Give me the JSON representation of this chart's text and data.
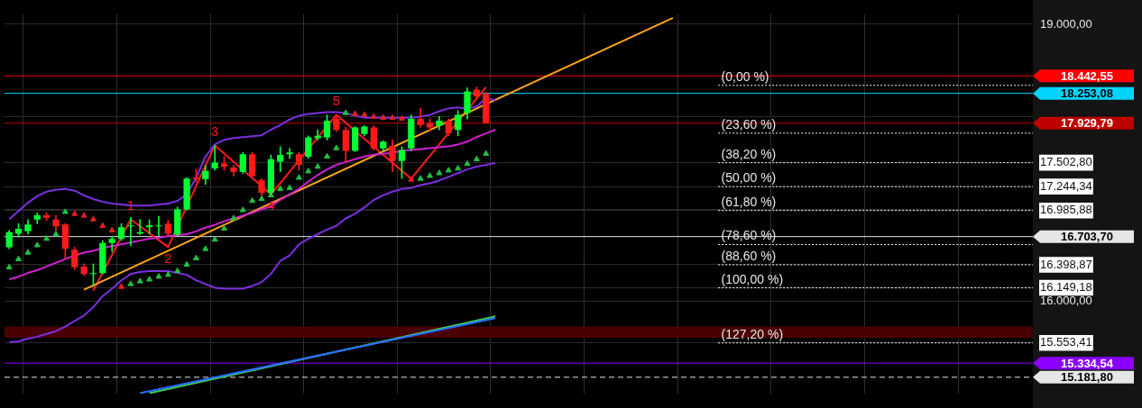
{
  "chart_data": {
    "type": "candlestick",
    "categories": [
      null,
      null,
      null,
      null,
      null,
      null,
      null,
      null,
      null,
      null,
      null,
      null,
      null,
      null,
      null,
      null,
      null,
      null,
      null,
      null,
      null,
      null,
      null,
      null,
      null,
      null,
      null,
      null,
      null,
      null,
      null,
      null,
      null,
      null,
      null,
      null,
      null,
      null,
      null,
      null,
      null,
      null,
      null,
      null,
      null,
      null,
      null,
      null,
      null,
      null,
      null,
      null,
      null,
      null,
      null,
      null,
      null,
      null,
      null,
      null,
      null,
      null,
      null,
      null,
      null,
      null,
      null,
      null,
      null,
      null,
      null,
      null,
      null,
      null,
      null,
      null,
      null,
      null,
      null,
      null,
      null,
      null,
      null,
      null,
      null,
      null,
      null,
      null,
      null,
      null,
      null,
      null,
      null,
      null,
      null,
      null,
      null,
      null,
      null,
      null,
      null,
      null,
      null,
      null,
      null,
      null,
      null,
      null,
      null,
      null
    ],
    "ohlc": [
      [
        16589,
        16770,
        16571,
        16752
      ],
      [
        16734,
        16843,
        16698,
        16788
      ],
      [
        16761,
        16888,
        16734,
        16834
      ],
      [
        16888,
        16960,
        16843,
        16933
      ],
      [
        16933,
        16960,
        16879,
        16906
      ],
      [
        16888,
        16933,
        16770,
        16815
      ],
      [
        16834,
        16843,
        16462,
        16571
      ],
      [
        16562,
        16589,
        16344,
        16371
      ],
      [
        16380,
        16407,
        16281,
        16299
      ],
      [
        16299,
        16407,
        16163,
        16308
      ],
      [
        16308,
        16661,
        16299,
        16634
      ],
      [
        16634,
        16707,
        16543,
        16679
      ],
      [
        16679,
        16843,
        16661,
        16806
      ],
      [
        16815,
        16915,
        16607,
        16824
      ],
      [
        16734,
        16888,
        16725,
        16752
      ],
      [
        16806,
        16888,
        16734,
        16824
      ],
      [
        16815,
        16924,
        16716,
        16824
      ],
      [
        16843,
        16879,
        16716,
        16734
      ],
      [
        16725,
        17024,
        16716,
        16997
      ],
      [
        16997,
        17341,
        16988,
        17332
      ],
      [
        17341,
        17432,
        17296,
        17323
      ],
      [
        17323,
        17477,
        17269,
        17414
      ],
      [
        17441,
        17686,
        17423,
        17504
      ],
      [
        17495,
        17568,
        17423,
        17459
      ],
      [
        17450,
        17477,
        17359,
        17405
      ],
      [
        17405,
        17613,
        17386,
        17595
      ],
      [
        17595,
        17613,
        17341,
        17359
      ],
      [
        17314,
        17332,
        17142,
        17178
      ],
      [
        17178,
        17586,
        17160,
        17541
      ],
      [
        17513,
        17677,
        17405,
        17586
      ],
      [
        17595,
        17658,
        17550,
        17613
      ],
      [
        17595,
        17613,
        17423,
        17477
      ],
      [
        17568,
        17794,
        17550,
        17776
      ],
      [
        17767,
        17858,
        17749,
        17794
      ],
      [
        17776,
        18021,
        17749,
        17958
      ],
      [
        17976,
        18021,
        17840,
        17858
      ],
      [
        17858,
        17885,
        17504,
        17631
      ],
      [
        17631,
        17894,
        17622,
        17885
      ],
      [
        17813,
        17903,
        17794,
        17894
      ],
      [
        17885,
        17903,
        17640,
        17658
      ],
      [
        17658,
        17740,
        17631,
        17731
      ],
      [
        17686,
        17749,
        17405,
        17522
      ],
      [
        17522,
        17677,
        17332,
        17640
      ],
      [
        17658,
        18021,
        17631,
        17976
      ],
      [
        17976,
        18094,
        17885,
        17912
      ],
      [
        17930,
        17976,
        17840,
        17885
      ],
      [
        17903,
        18003,
        17858,
        17958
      ],
      [
        17958,
        17976,
        17794,
        17822
      ],
      [
        17858,
        18066,
        17794,
        18021
      ],
      [
        18039,
        18311,
        17976,
        18275
      ],
      [
        18293,
        18320,
        18202,
        18221
      ],
      [
        18248,
        18266,
        17930,
        17930
      ],
      null,
      null,
      null,
      null,
      null,
      null,
      null,
      null,
      null,
      null,
      null,
      null,
      null,
      null,
      null,
      null,
      null,
      null,
      null,
      null,
      null,
      null,
      null,
      null,
      null,
      null,
      null,
      null,
      null,
      null,
      null,
      null,
      null,
      null,
      null,
      null,
      null,
      null,
      null,
      null,
      null,
      null,
      null,
      null,
      null,
      null,
      null,
      null,
      null,
      null,
      null,
      null,
      null,
      null,
      null,
      null,
      null,
      null
    ],
    "colors": [
      "#00ff33",
      "#00ff33",
      "#00ff33",
      "#00ff33",
      "#ff1a1a",
      "#ff1a1a",
      "#ff1a1a",
      "#ff1a1a",
      "#ff1a1a",
      "#00ff33",
      "#00ff33",
      "#00ff33",
      "#00ff33",
      "#00ff33",
      "#00ff33",
      "#00ff33",
      "#00ff33",
      "#ff1a1a",
      "#00ff33",
      "#00ff33",
      "#ff1a1a",
      "#00ff33",
      "#00ff33",
      "#ff1a1a",
      "#ff1a1a",
      "#00ff33",
      "#ff1a1a",
      "#ff1a1a",
      "#00ff33",
      "#00ff33",
      "#00ff33",
      "#ff1a1a",
      "#00ff33",
      "#00ff33",
      "#00ff33",
      "#ff1a1a",
      "#ff1a1a",
      "#00ff33",
      "#00ff33",
      "#ff1a1a",
      "#00ff33",
      "#ff1a1a",
      "#00ff33",
      "#00ff33",
      "#ff1a1a",
      "#ff1a1a",
      "#00ff33",
      "#ff1a1a",
      "#00ff33",
      "#00ff33",
      "#ff1a1a",
      "#ff1a1a",
      null,
      null,
      null,
      null,
      null,
      null,
      null,
      null,
      null,
      null,
      null,
      null,
      null,
      null,
      null,
      null,
      null,
      null,
      null,
      null,
      null,
      null,
      null,
      null,
      null,
      null,
      null,
      null,
      null,
      null,
      null,
      null,
      null,
      null,
      null,
      null,
      null,
      null,
      null,
      null,
      null,
      null,
      null,
      null,
      null,
      null,
      null,
      null,
      null,
      null,
      null,
      null,
      null,
      null,
      null,
      null,
      null,
      null
    ],
    "series": [
      {
        "type": "line",
        "color": "#7b2fe0",
        "values": [
          16890,
          16980,
          17070,
          17140,
          17190,
          17210,
          17220,
          17200,
          17150,
          17110,
          17080,
          17060,
          17050,
          17040,
          17040,
          17040,
          17050,
          17060,
          17090,
          17160,
          17340,
          17570,
          17700,
          17750,
          17770,
          17780,
          17790,
          17800,
          17860,
          17910,
          17970,
          18010,
          18030,
          18040,
          18050,
          18050,
          18040,
          18010,
          17990,
          17990,
          17990,
          17990,
          17990,
          17990,
          18000,
          18020,
          18060,
          18090,
          18100,
          18090,
          18110,
          18200,
          18180,
          null,
          null,
          null,
          null,
          null,
          null,
          null,
          null,
          null,
          null,
          null,
          null,
          null,
          null,
          null,
          null,
          null,
          null,
          null,
          null,
          null,
          null,
          null,
          null,
          null,
          null,
          null,
          null,
          null,
          null,
          null,
          null,
          null,
          null,
          null,
          null,
          null,
          null,
          null,
          null,
          null,
          null,
          null,
          null,
          null,
          null,
          null,
          null,
          null,
          null,
          null,
          null,
          null,
          null,
          null,
          null,
          null
        ]
      },
      {
        "type": "line",
        "color": "#7b2fe0",
        "values": [
          15560,
          15570,
          15600,
          15620,
          15650,
          15680,
          15730,
          15790,
          15850,
          15940,
          16060,
          16140,
          16230,
          16300,
          16320,
          16330,
          16330,
          16330,
          16310,
          16290,
          16230,
          16190,
          16150,
          16140,
          16140,
          16140,
          16170,
          16210,
          16300,
          16440,
          16500,
          16620,
          16680,
          16730,
          16780,
          16820,
          16900,
          16950,
          17020,
          17100,
          17150,
          17190,
          17220,
          17230,
          17260,
          17280,
          17310,
          17350,
          17390,
          17430,
          17460,
          17480,
          17500,
          null,
          null,
          null,
          null,
          null,
          null,
          null,
          null,
          null,
          null,
          null,
          null,
          null,
          null,
          null,
          null,
          null,
          null,
          null,
          null,
          null,
          null,
          null,
          null,
          null,
          null,
          null,
          null,
          null,
          null,
          null,
          null,
          null,
          null,
          null,
          null,
          null,
          null,
          null,
          null,
          null,
          null,
          null,
          null,
          null,
          null,
          null,
          null,
          null,
          null,
          null,
          null,
          null,
          null,
          null,
          null,
          null
        ]
      },
      {
        "type": "line",
        "color": "#d020d0",
        "values": [
          16240,
          16270,
          16310,
          16340,
          16380,
          16420,
          16460,
          16500,
          16530,
          16550,
          16580,
          16600,
          16620,
          16640,
          16660,
          16680,
          16690,
          16710,
          16720,
          16730,
          16760,
          16800,
          16830,
          16870,
          16900,
          16930,
          16960,
          17000,
          17030,
          17100,
          17160,
          17220,
          17300,
          17370,
          17430,
          17480,
          17510,
          17540,
          17570,
          17590,
          17600,
          17610,
          17630,
          17640,
          17650,
          17660,
          17670,
          17680,
          17700,
          17730,
          17780,
          17820,
          17860,
          null,
          null,
          null,
          null,
          null,
          null,
          null,
          null,
          null,
          null,
          null,
          null,
          null,
          null,
          null,
          null,
          null,
          null,
          null,
          null,
          null,
          null,
          null,
          null,
          null,
          null,
          null,
          null,
          null,
          null,
          null,
          null,
          null,
          null,
          null,
          null,
          null,
          null,
          null,
          null,
          null,
          null,
          null,
          null,
          null,
          null,
          null,
          null,
          null,
          null,
          null,
          null,
          null,
          null,
          null,
          null,
          null
        ]
      },
      {
        "type": "line",
        "color": "#2a6cff",
        "values": [
          null,
          null,
          null,
          null,
          null,
          null,
          null,
          null,
          null,
          null,
          null,
          null,
          null,
          null,
          15010,
          null,
          null,
          null,
          null,
          null,
          null,
          null,
          null,
          null,
          null,
          null,
          null,
          null,
          null,
          null,
          null,
          null,
          null,
          null,
          null,
          null,
          null,
          null,
          null,
          null,
          null,
          null,
          null,
          null,
          null,
          null,
          null,
          null,
          null,
          null,
          null,
          null,
          15820,
          null,
          null,
          null,
          null,
          null,
          null,
          null,
          null,
          null,
          null,
          null,
          null,
          null,
          null,
          null,
          null,
          null,
          null,
          null,
          null,
          null,
          null,
          null,
          null,
          null,
          null,
          null,
          null,
          null,
          null,
          null,
          null,
          null,
          null,
          null,
          null,
          null,
          null,
          null,
          null,
          null,
          null,
          null,
          null,
          null,
          null,
          null,
          null,
          null,
          null,
          null,
          null,
          null,
          null,
          null,
          null,
          null
        ]
      },
      {
        "type": "line",
        "color": "#3ccf5a",
        "values": [
          null,
          null,
          null,
          null,
          null,
          null,
          null,
          null,
          null,
          null,
          null,
          null,
          null,
          null,
          null,
          15010,
          null,
          null,
          null,
          null,
          null,
          null,
          null,
          null,
          null,
          null,
          null,
          null,
          null,
          null,
          null,
          null,
          null,
          null,
          null,
          null,
          null,
          null,
          null,
          null,
          null,
          null,
          null,
          null,
          null,
          null,
          null,
          null,
          null,
          null,
          null,
          null,
          15840,
          null,
          null,
          null,
          null,
          null,
          null,
          null,
          null,
          null,
          null,
          null,
          null,
          null,
          null,
          null,
          null,
          null,
          null,
          null,
          null,
          null,
          null,
          null,
          null,
          null,
          null,
          null,
          null,
          null,
          null,
          null,
          null,
          null,
          null,
          null,
          null,
          null,
          null,
          null,
          null,
          null,
          null,
          null,
          null,
          null,
          null,
          null,
          null,
          null,
          null,
          null,
          null,
          null,
          null,
          null,
          null,
          null
        ]
      },
      {
        "type": "line",
        "color": "#ffa31a",
        "values": [
          null,
          null,
          null,
          null,
          null,
          null,
          null,
          null,
          16130,
          null,
          null,
          null,
          null,
          null,
          null,
          null,
          null,
          null,
          null,
          null,
          null,
          null,
          null,
          null,
          null,
          null,
          null,
          null,
          null,
          null,
          null,
          null,
          null,
          null,
          null,
          null,
          null,
          null,
          null,
          null,
          null,
          null,
          null,
          null,
          null,
          null,
          null,
          null,
          null,
          null,
          null,
          null,
          null,
          null,
          null,
          null,
          null,
          null,
          null,
          null,
          null,
          null,
          null,
          null,
          null,
          null,
          null,
          null,
          null,
          null,
          null,
          19070,
          null,
          null,
          null,
          null,
          null,
          null,
          null,
          null,
          null,
          null,
          null,
          null,
          null,
          null,
          null,
          null,
          null,
          null,
          null,
          null,
          null,
          null,
          null,
          null,
          null,
          null,
          null,
          null,
          null,
          null,
          null,
          null,
          null,
          null,
          null,
          null,
          null,
          null
        ]
      },
      {
        "type": "line",
        "color": "#ff1a1a",
        "values": [
          null,
          null,
          null,
          null,
          null,
          null,
          null,
          null,
          null,
          16120,
          null,
          null,
          null,
          16890,
          null,
          null,
          null,
          16590,
          null,
          null,
          null,
          null,
          17690,
          null,
          null,
          null,
          null,
          null,
          17160,
          null,
          null,
          null,
          null,
          null,
          null,
          18020,
          null,
          null,
          null,
          null,
          null,
          null,
          null,
          17330,
          null,
          null,
          null,
          null,
          null,
          null,
          null,
          18320,
          null,
          null,
          null,
          null,
          null,
          null,
          null,
          null,
          null,
          null,
          null,
          null,
          null,
          null,
          null,
          null,
          null,
          null,
          null,
          null,
          null,
          null,
          null,
          null,
          null,
          null,
          null,
          null,
          null,
          null,
          null,
          null,
          null,
          null,
          null,
          null,
          null,
          null,
          null,
          null,
          null,
          null,
          null,
          null,
          null,
          null,
          null,
          null,
          null,
          null,
          null,
          null,
          null,
          null,
          null,
          null,
          null,
          null
        ]
      },
      {
        "type": "scatter",
        "marker": "triangle",
        "values": [
          16370,
          16460,
          16530,
          16610,
          16680,
          16730,
          16970,
          16950,
          16930,
          16890,
          16820,
          16770,
          16160,
          16190,
          16220,
          16240,
          16270,
          16290,
          16330,
          16400,
          16470,
          16570,
          16670,
          16790,
          16900,
          16990,
          17090,
          17110,
          17150,
          17220,
          17230,
          17340,
          17410,
          17460,
          17570,
          17660,
          18040,
          18030,
          18020,
          18000,
          17990,
          17990,
          17980,
          17320,
          17330,
          17360,
          17390,
          17420,
          17440,
          17490,
          17540,
          17600,
          null,
          null,
          null,
          null,
          null,
          null,
          null,
          null,
          null,
          null,
          null,
          null,
          null,
          null,
          null,
          null,
          null,
          null,
          null,
          null,
          null,
          null,
          null,
          null,
          null,
          null,
          null,
          null,
          null,
          null,
          null,
          null,
          null,
          null,
          null,
          null,
          null,
          null,
          null,
          null,
          null,
          null,
          null,
          null,
          null,
          null,
          null,
          null,
          null,
          null,
          null,
          null,
          null,
          null,
          null,
          null,
          null,
          null
        ],
        "colors": [
          "#20c040",
          "#20c040",
          "#20c040",
          "#20c040",
          "#20c040",
          "#20c040",
          "#20c040",
          "#e02020",
          "#e02020",
          "#e02020",
          "#e02020",
          "#e02020",
          "#e02020",
          "#20c040",
          "#20c040",
          "#20c040",
          "#20c040",
          "#20c040",
          "#20c040",
          "#20c040",
          "#20c040",
          "#20c040",
          "#20c040",
          "#20c040",
          "#20c040",
          "#20c040",
          "#20c040",
          "#20c040",
          "#20c040",
          "#20c040",
          "#20c040",
          "#20c040",
          "#20c040",
          "#20c040",
          "#20c040",
          "#20c040",
          "#20c040",
          "#e02020",
          "#e02020",
          "#e02020",
          "#e02020",
          "#e02020",
          "#e02020",
          "#e02020",
          "#20c040",
          "#20c040",
          "#20c040",
          "#20c040",
          "#20c040",
          "#20c040",
          "#20c040",
          "#20c040",
          null,
          null,
          null,
          null,
          null,
          null,
          null,
          null,
          null,
          null,
          null,
          null,
          null,
          null,
          null,
          null,
          null,
          null,
          null,
          null,
          null,
          null,
          null,
          null,
          null,
          null,
          null,
          null,
          null,
          null,
          null,
          null,
          null,
          null,
          null,
          null,
          null,
          null,
          null,
          null,
          null,
          null,
          null,
          null,
          null,
          null,
          null,
          null,
          null,
          null,
          null,
          null,
          null,
          null,
          null,
          null,
          null,
          null
        ]
      }
    ],
    "ylim": [
      15003,
      19109
    ],
    "yticks": [
      {
        "value": 19000,
        "label": "19.000,00"
      },
      {
        "value": 18000,
        "label": null
      },
      {
        "value": 17502.8,
        "label": "17.502,80"
      },
      {
        "value": 17244.34,
        "label": "17.244,34"
      },
      {
        "value": 17000,
        "label": null
      },
      {
        "value": 16985.88,
        "label": "16.985,88"
      },
      {
        "value": 16398.87,
        "label": "16.398,87"
      },
      {
        "value": 16149.18,
        "label": "16.149,18"
      },
      {
        "value": 16000,
        "label": "16.000,00"
      },
      {
        "value": 15553.41,
        "label": "15.553,41"
      }
    ],
    "grid": true,
    "tick_labels": "y",
    "bands": [
      {
        "axis": "y",
        "from": 15610,
        "to": 15730,
        "color": "#4a0000"
      }
    ],
    "annotations": [
      {
        "text": "1",
        "y": 16890
      },
      {
        "text": "2",
        "y": 16590
      },
      {
        "text": "3",
        "y": 17690
      },
      {
        "text": "4",
        "y": 17160
      },
      {
        "text": "5",
        "y": 18020
      },
      {
        "text": "(0,00 %)",
        "y": 18339.52
      },
      {
        "text": "(23,60 %)",
        "y": 17822.55
      },
      {
        "text": "(38,20 %)",
        "y": 17502.8
      },
      {
        "text": "(50,00 %)",
        "y": 17244.34
      },
      {
        "text": "(61,80 %)",
        "y": 16985.88
      },
      {
        "text": "(78,60 %)",
        "y": 16617.91
      },
      {
        "text": "(88,60 %)",
        "y": 16398.87
      },
      {
        "text": "(100,00 %)",
        "y": 16149.18
      },
      {
        "text": "(127,20 %)",
        "y": 15553.41
      }
    ],
    "ref_lines": [
      {
        "axis": "y",
        "value": 18339.52,
        "color": "#ffffff",
        "line_style": "dotted"
      },
      {
        "axis": "y",
        "value": 17822.55,
        "color": "#ffffff",
        "line_style": "dotted"
      },
      {
        "axis": "y",
        "value": 17502.8,
        "color": "#ffffff",
        "line_style": "dotted"
      },
      {
        "axis": "y",
        "value": 17244.34,
        "color": "#ffffff",
        "line_style": "dotted"
      },
      {
        "axis": "y",
        "value": 16985.88,
        "color": "#ffffff",
        "line_style": "dotted"
      },
      {
        "axis": "y",
        "value": 16617.91,
        "color": "#ffffff",
        "line_style": "dotted"
      },
      {
        "axis": "y",
        "value": 16398.87,
        "color": "#ffffff",
        "line_style": "dotted"
      },
      {
        "axis": "y",
        "value": 16149.18,
        "color": "#ffffff",
        "line_style": "dotted"
      },
      {
        "axis": "y",
        "value": 15553.41,
        "color": "#ffffff",
        "line_style": "dotted"
      },
      {
        "axis": "y",
        "value": 18442.55,
        "label": "18.442,55",
        "color": "#ff0000",
        "line_style": "solid"
      },
      {
        "axis": "y",
        "value": 18253.08,
        "label": "18.253,08",
        "color": "#00d4ff",
        "line_style": "solid"
      },
      {
        "axis": "y",
        "value": 17929.79,
        "label": "17.929,79",
        "color": "#c00000",
        "line_style": "solid"
      },
      {
        "axis": "y",
        "value": 16703.7,
        "label": "16.703,70",
        "color": "#e6e6e6",
        "line_style": "solid"
      },
      {
        "axis": "y",
        "value": 15334.54,
        "label": "15.334,54",
        "color": "#8a00ff",
        "line_style": "solid"
      },
      {
        "axis": "y",
        "value": 15181.8,
        "label": "15.181,80",
        "color": "#e6e6e6",
        "line_style": "dashed"
      }
    ]
  }
}
